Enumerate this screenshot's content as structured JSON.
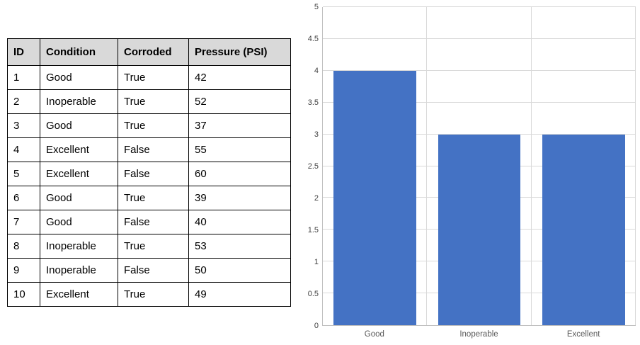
{
  "table": {
    "columns": [
      "ID",
      "Condition",
      "Corroded",
      "Pressure (PSI)"
    ],
    "rows": [
      [
        "1",
        "Good",
        "True",
        "42"
      ],
      [
        "2",
        "Inoperable",
        "True",
        "52"
      ],
      [
        "3",
        "Good",
        "True",
        "37"
      ],
      [
        "4",
        "Excellent",
        "False",
        "55"
      ],
      [
        "5",
        "Excellent",
        "False",
        "60"
      ],
      [
        "6",
        "Good",
        "True",
        "39"
      ],
      [
        "7",
        "Good",
        "False",
        "40"
      ],
      [
        "8",
        "Inoperable",
        "True",
        "53"
      ],
      [
        "9",
        "Inoperable",
        "False",
        "50"
      ],
      [
        "10",
        "Excellent",
        "True",
        "49"
      ]
    ],
    "header_bg": "#d9d9d9"
  },
  "chart_data": {
    "type": "bar",
    "categories": [
      "Good",
      "Inoperable",
      "Excellent"
    ],
    "values": [
      4,
      3,
      3
    ],
    "title": "",
    "xlabel": "",
    "ylabel": "",
    "ylim": [
      0,
      5
    ],
    "ytick_step": 0.5,
    "yticks": [
      "0",
      "0.5",
      "1",
      "1.5",
      "2",
      "2.5",
      "3",
      "3.5",
      "4",
      "4.5",
      "5"
    ],
    "bar_color": "#4472c4",
    "grid": "horizontal major + vertical category separators",
    "legend": "none"
  }
}
